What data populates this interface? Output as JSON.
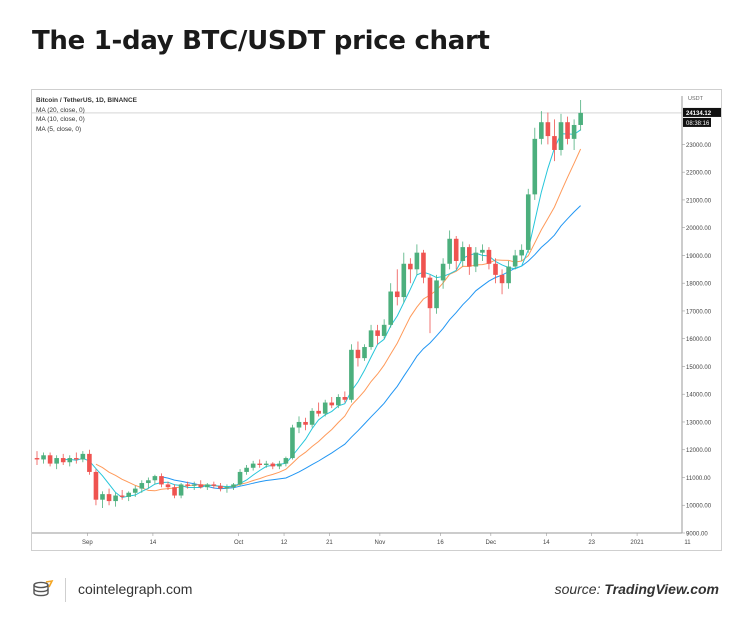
{
  "title": "The 1-day BTC/USDT price chart",
  "legend": {
    "symbol": "Bitcoin / TetherUS, 1D, BINANCE",
    "ma20": "MA (20, close, 0)",
    "ma10": "MA (10, close, 0)",
    "ma5": "MA (5, close, 0)"
  },
  "footer": {
    "site": "cointelegraph.com",
    "source_prefix": "source:",
    "source_name": "TradingView.com",
    "logo_icon": "cointelegraph-logo-icon"
  },
  "colors": {
    "up": "#26a69a",
    "up_fill": "#4caf7d",
    "down": "#ef5350",
    "ma5": "#26c6da",
    "ma10": "#ff9a5a",
    "ma20": "#2196f3",
    "price_tag": "#111111"
  },
  "chart_data": {
    "type": "candlestick",
    "x_ticks": [
      "Sep",
      "14",
      "Oct",
      "12",
      "21",
      "Nov",
      "16",
      "Dec",
      "14",
      "23",
      "2021",
      "11"
    ],
    "y_axis_unit": "USDT",
    "y_ticks": [
      "9000.00",
      "10000.00",
      "11000.00",
      "12000.00",
      "13000.00",
      "14000.00",
      "15000.00",
      "16000.00",
      "17000.00",
      "18000.00",
      "19000.00",
      "20000.00",
      "21000.00",
      "22000.00",
      "23000.00"
    ],
    "ylim": [
      9000,
      24600
    ],
    "last_price": "24134.12",
    "countdown": "08:38:16",
    "grid": false,
    "candles": [
      {
        "o": 11700,
        "h": 11950,
        "l": 11450,
        "c": 11650
      },
      {
        "o": 11650,
        "h": 11900,
        "l": 11500,
        "c": 11800
      },
      {
        "o": 11800,
        "h": 11900,
        "l": 11400,
        "c": 11500
      },
      {
        "o": 11500,
        "h": 11800,
        "l": 11300,
        "c": 11700
      },
      {
        "o": 11700,
        "h": 11850,
        "l": 11450,
        "c": 11550
      },
      {
        "o": 11550,
        "h": 11800,
        "l": 11400,
        "c": 11700
      },
      {
        "o": 11700,
        "h": 11900,
        "l": 11500,
        "c": 11650
      },
      {
        "o": 11650,
        "h": 11950,
        "l": 11550,
        "c": 11850
      },
      {
        "o": 11850,
        "h": 12000,
        "l": 11100,
        "c": 11200
      },
      {
        "o": 11200,
        "h": 11300,
        "l": 10000,
        "c": 10200
      },
      {
        "o": 10200,
        "h": 10500,
        "l": 9900,
        "c": 10400
      },
      {
        "o": 10400,
        "h": 10600,
        "l": 10000,
        "c": 10150
      },
      {
        "o": 10150,
        "h": 10450,
        "l": 9950,
        "c": 10350
      },
      {
        "o": 10350,
        "h": 10550,
        "l": 10200,
        "c": 10300
      },
      {
        "o": 10300,
        "h": 10500,
        "l": 10150,
        "c": 10450
      },
      {
        "o": 10450,
        "h": 10700,
        "l": 10300,
        "c": 10600
      },
      {
        "o": 10600,
        "h": 10900,
        "l": 10450,
        "c": 10800
      },
      {
        "o": 10800,
        "h": 11000,
        "l": 10600,
        "c": 10900
      },
      {
        "o": 10900,
        "h": 11100,
        "l": 10750,
        "c": 11050
      },
      {
        "o": 11050,
        "h": 11150,
        "l": 10650,
        "c": 10750
      },
      {
        "o": 10750,
        "h": 10850,
        "l": 10550,
        "c": 10650
      },
      {
        "o": 10650,
        "h": 10750,
        "l": 10250,
        "c": 10350
      },
      {
        "o": 10350,
        "h": 10800,
        "l": 10250,
        "c": 10750
      },
      {
        "o": 10750,
        "h": 10850,
        "l": 10600,
        "c": 10700
      },
      {
        "o": 10700,
        "h": 10850,
        "l": 10550,
        "c": 10750
      },
      {
        "o": 10750,
        "h": 10900,
        "l": 10600,
        "c": 10650
      },
      {
        "o": 10650,
        "h": 10800,
        "l": 10550,
        "c": 10750
      },
      {
        "o": 10750,
        "h": 10850,
        "l": 10600,
        "c": 10700
      },
      {
        "o": 10700,
        "h": 10800,
        "l": 10500,
        "c": 10600
      },
      {
        "o": 10600,
        "h": 10750,
        "l": 10450,
        "c": 10650
      },
      {
        "o": 10650,
        "h": 10800,
        "l": 10550,
        "c": 10750
      },
      {
        "o": 10750,
        "h": 11300,
        "l": 10700,
        "c": 11200
      },
      {
        "o": 11200,
        "h": 11450,
        "l": 11100,
        "c": 11350
      },
      {
        "o": 11350,
        "h": 11600,
        "l": 11250,
        "c": 11500
      },
      {
        "o": 11500,
        "h": 11650,
        "l": 11350,
        "c": 11450
      },
      {
        "o": 11450,
        "h": 11600,
        "l": 11350,
        "c": 11500
      },
      {
        "o": 11500,
        "h": 11550,
        "l": 11300,
        "c": 11400
      },
      {
        "o": 11400,
        "h": 11600,
        "l": 11300,
        "c": 11500
      },
      {
        "o": 11500,
        "h": 11750,
        "l": 11400,
        "c": 11700
      },
      {
        "o": 11700,
        "h": 12900,
        "l": 11650,
        "c": 12800
      },
      {
        "o": 12800,
        "h": 13200,
        "l": 12600,
        "c": 13000
      },
      {
        "o": 13000,
        "h": 13150,
        "l": 12700,
        "c": 12900
      },
      {
        "o": 12900,
        "h": 13500,
        "l": 12800,
        "c": 13400
      },
      {
        "o": 13400,
        "h": 13700,
        "l": 13200,
        "c": 13300
      },
      {
        "o": 13300,
        "h": 13800,
        "l": 13200,
        "c": 13700
      },
      {
        "o": 13700,
        "h": 13900,
        "l": 13500,
        "c": 13600
      },
      {
        "o": 13600,
        "h": 14000,
        "l": 13500,
        "c": 13900
      },
      {
        "o": 13900,
        "h": 14100,
        "l": 13700,
        "c": 13800
      },
      {
        "o": 13800,
        "h": 15800,
        "l": 13700,
        "c": 15600
      },
      {
        "o": 15600,
        "h": 15900,
        "l": 15000,
        "c": 15300
      },
      {
        "o": 15300,
        "h": 15800,
        "l": 15200,
        "c": 15700
      },
      {
        "o": 15700,
        "h": 16500,
        "l": 15600,
        "c": 16300
      },
      {
        "o": 16300,
        "h": 16500,
        "l": 15800,
        "c": 16100
      },
      {
        "o": 16100,
        "h": 16700,
        "l": 16000,
        "c": 16500
      },
      {
        "o": 16500,
        "h": 18000,
        "l": 16400,
        "c": 17700
      },
      {
        "o": 17700,
        "h": 18500,
        "l": 17200,
        "c": 17500
      },
      {
        "o": 17500,
        "h": 19100,
        "l": 17300,
        "c": 18700
      },
      {
        "o": 18700,
        "h": 18900,
        "l": 18000,
        "c": 18500
      },
      {
        "o": 18500,
        "h": 19400,
        "l": 18300,
        "c": 19100
      },
      {
        "o": 19100,
        "h": 19200,
        "l": 18000,
        "c": 18200
      },
      {
        "o": 18200,
        "h": 18300,
        "l": 16200,
        "c": 17100
      },
      {
        "o": 17100,
        "h": 18300,
        "l": 16900,
        "c": 18100
      },
      {
        "o": 18100,
        "h": 18900,
        "l": 17800,
        "c": 18700
      },
      {
        "o": 18700,
        "h": 19900,
        "l": 18500,
        "c": 19600
      },
      {
        "o": 19600,
        "h": 19700,
        "l": 18500,
        "c": 18800
      },
      {
        "o": 18800,
        "h": 19500,
        "l": 18600,
        "c": 19300
      },
      {
        "o": 19300,
        "h": 19400,
        "l": 18300,
        "c": 18600
      },
      {
        "o": 18600,
        "h": 19300,
        "l": 18400,
        "c": 19100
      },
      {
        "o": 19100,
        "h": 19400,
        "l": 18800,
        "c": 19200
      },
      {
        "o": 19200,
        "h": 19300,
        "l": 18500,
        "c": 18700
      },
      {
        "o": 18700,
        "h": 18900,
        "l": 18000,
        "c": 18300
      },
      {
        "o": 18300,
        "h": 18500,
        "l": 17600,
        "c": 18000
      },
      {
        "o": 18000,
        "h": 18800,
        "l": 17800,
        "c": 18600
      },
      {
        "o": 18600,
        "h": 19200,
        "l": 18500,
        "c": 19000
      },
      {
        "o": 19000,
        "h": 19400,
        "l": 18800,
        "c": 19200
      },
      {
        "o": 19200,
        "h": 21400,
        "l": 19100,
        "c": 21200
      },
      {
        "o": 21200,
        "h": 23600,
        "l": 21000,
        "c": 23200
      },
      {
        "o": 23200,
        "h": 24200,
        "l": 23000,
        "c": 23800
      },
      {
        "o": 23800,
        "h": 24150,
        "l": 23000,
        "c": 23300
      },
      {
        "o": 23300,
        "h": 23900,
        "l": 22400,
        "c": 22800
      },
      {
        "o": 22800,
        "h": 24100,
        "l": 22600,
        "c": 23800
      },
      {
        "o": 23800,
        "h": 24000,
        "l": 23000,
        "c": 23200
      },
      {
        "o": 23200,
        "h": 23900,
        "l": 22800,
        "c": 23700
      },
      {
        "o": 23700,
        "h": 24600,
        "l": 23500,
        "c": 24134
      }
    ]
  }
}
